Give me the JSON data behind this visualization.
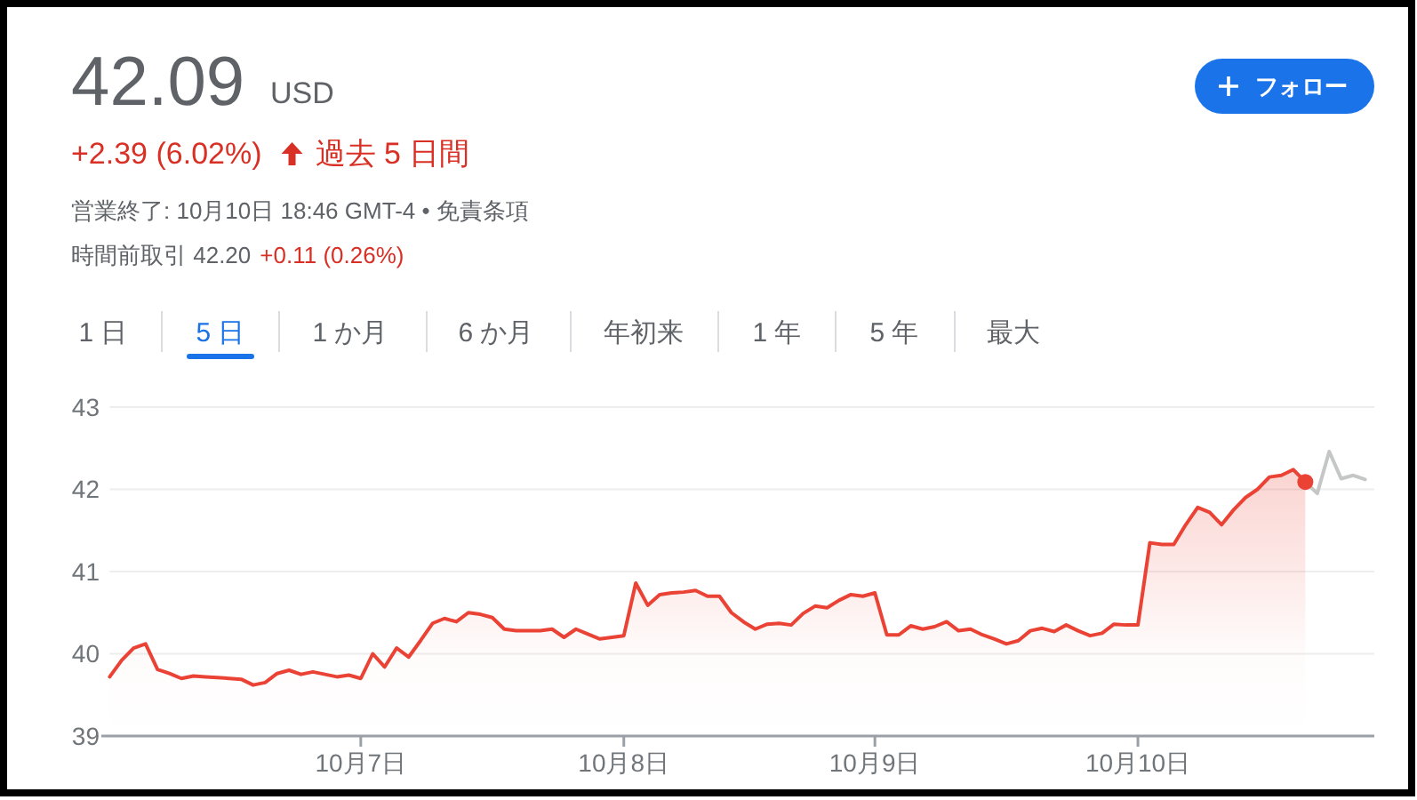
{
  "chart_data": {
    "type": "area",
    "title": "42.09",
    "annotations": [
      "USD",
      "+2.39 (6.02%)",
      "過去 5 日間",
      "営業終了: 10月10日 18:46 GMT-4 • 免責条項",
      "時間前取引 42.20",
      "+0.11 (0.26%)",
      "1 日",
      "5 日",
      "1 か月",
      "6 か月",
      "年初来",
      "1 年",
      "5 年",
      "最大",
      "フォロー"
    ],
    "categories": [
      null,
      null,
      null,
      null,
      null,
      null,
      null,
      null,
      null,
      null,
      null,
      null,
      null,
      null,
      null,
      null,
      null,
      null,
      null,
      null,
      null,
      "10月7日",
      null,
      null,
      null,
      null,
      null,
      null,
      null,
      null,
      null,
      null,
      null,
      null,
      null,
      null,
      null,
      null,
      null,
      null,
      null,
      null,
      null,
      "10月8日",
      null,
      null,
      null,
      null,
      null,
      null,
      null,
      null,
      null,
      null,
      null,
      null,
      null,
      null,
      null,
      null,
      null,
      null,
      null,
      null,
      "10月9日",
      null,
      null,
      null,
      null,
      null,
      null,
      null,
      null,
      null,
      null,
      null,
      null,
      null,
      null,
      null,
      null,
      null,
      null,
      null,
      null,
      null,
      "10月10日",
      null,
      null,
      null,
      null,
      null,
      null,
      null,
      null,
      null,
      null,
      null,
      null,
      null,
      null,
      null,
      null,
      null,
      null,
      null
    ],
    "ylim": [
      39,
      43
    ],
    "yticks": [
      39,
      40,
      41,
      42,
      43
    ],
    "grid": "y",
    "series": [
      {
        "color": "#ea4335",
        "values": [
          39.72,
          39.92,
          40.07,
          40.12,
          39.81,
          39.76,
          39.7,
          39.73,
          39.72,
          39.71,
          39.7,
          39.69,
          39.62,
          39.65,
          39.76,
          39.8,
          39.75,
          39.78,
          39.75,
          39.72,
          39.74,
          39.7,
          40.0,
          39.84,
          40.07,
          39.96,
          40.16,
          40.37,
          40.43,
          40.39,
          40.5,
          40.48,
          40.44,
          40.3,
          40.28,
          40.28,
          40.28,
          40.3,
          40.2,
          40.3,
          40.24,
          40.18,
          40.2,
          40.22,
          40.86,
          40.59,
          40.72,
          40.74,
          40.75,
          40.77,
          40.7,
          40.7,
          40.5,
          40.39,
          40.3,
          40.36,
          40.37,
          40.35,
          40.49,
          40.58,
          40.56,
          40.65,
          40.72,
          40.7,
          40.74,
          40.23,
          40.23,
          40.34,
          40.3,
          40.33,
          40.39,
          40.28,
          40.3,
          40.23,
          40.18,
          40.12,
          40.16,
          40.28,
          40.31,
          40.27,
          40.35,
          40.28,
          40.22,
          40.25,
          40.36,
          40.35,
          40.35,
          41.35,
          41.33,
          41.33,
          41.57,
          41.78,
          41.72,
          41.57,
          41.75,
          41.9,
          42.0,
          42.15,
          42.17,
          42.24,
          42.09,
          null,
          null,
          null,
          null,
          null
        ]
      },
      {
        "type": "line",
        "color": "#c4c7c5",
        "values": [
          null,
          null,
          null,
          null,
          null,
          null,
          null,
          null,
          null,
          null,
          null,
          null,
          null,
          null,
          null,
          null,
          null,
          null,
          null,
          null,
          null,
          null,
          null,
          null,
          null,
          null,
          null,
          null,
          null,
          null,
          null,
          null,
          null,
          null,
          null,
          null,
          null,
          null,
          null,
          null,
          null,
          null,
          null,
          null,
          null,
          null,
          null,
          null,
          null,
          null,
          null,
          null,
          null,
          null,
          null,
          null,
          null,
          null,
          null,
          null,
          null,
          null,
          null,
          null,
          null,
          null,
          null,
          null,
          null,
          null,
          null,
          null,
          null,
          null,
          null,
          null,
          null,
          null,
          null,
          null,
          null,
          null,
          null,
          null,
          null,
          null,
          null,
          null,
          null,
          null,
          null,
          null,
          null,
          null,
          null,
          null,
          null,
          null,
          null,
          null,
          42.09,
          41.95,
          42.46,
          42.13,
          42.17,
          42.12
        ]
      },
      {
        "type": "scatter",
        "color": "#ea4335",
        "marker": "circle",
        "values": [
          null,
          null,
          null,
          null,
          null,
          null,
          null,
          null,
          null,
          null,
          null,
          null,
          null,
          null,
          null,
          null,
          null,
          null,
          null,
          null,
          null,
          null,
          null,
          null,
          null,
          null,
          null,
          null,
          null,
          null,
          null,
          null,
          null,
          null,
          null,
          null,
          null,
          null,
          null,
          null,
          null,
          null,
          null,
          null,
          null,
          null,
          null,
          null,
          null,
          null,
          null,
          null,
          null,
          null,
          null,
          null,
          null,
          null,
          null,
          null,
          null,
          null,
          null,
          null,
          null,
          null,
          null,
          null,
          null,
          null,
          null,
          null,
          null,
          null,
          null,
          null,
          null,
          null,
          null,
          null,
          null,
          null,
          null,
          null,
          null,
          null,
          null,
          null,
          null,
          null,
          null,
          null,
          null,
          null,
          null,
          null,
          null,
          null,
          null,
          null,
          42.09,
          null,
          null,
          null,
          null,
          null
        ]
      }
    ]
  }
}
